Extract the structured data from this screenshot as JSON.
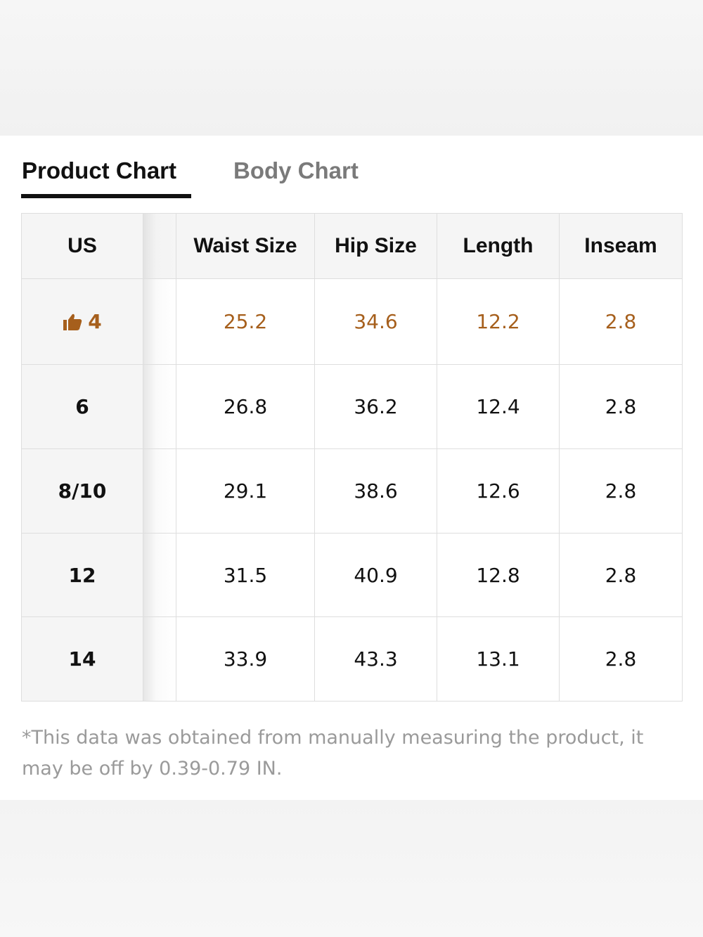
{
  "tabs": [
    "Product Chart",
    "Body Chart"
  ],
  "table": {
    "header": [
      "US",
      "Waist Size",
      "Hip Size",
      "Length",
      "Inseam"
    ],
    "rows": [
      [
        "4",
        "25.2",
        "34.6",
        "12.2",
        "2.8"
      ],
      [
        "6",
        "26.8",
        "36.2",
        "12.4",
        "2.8"
      ],
      [
        "8/10",
        "29.1",
        "38.6",
        "12.6",
        "2.8"
      ],
      [
        "12",
        "31.5",
        "40.9",
        "12.8",
        "2.8"
      ],
      [
        "14",
        "33.9",
        "43.3",
        "13.1",
        "2.8"
      ]
    ]
  },
  "note": "*This data was obtained from manually measuring the product, it may be off by 0.39-0.79 IN."
}
